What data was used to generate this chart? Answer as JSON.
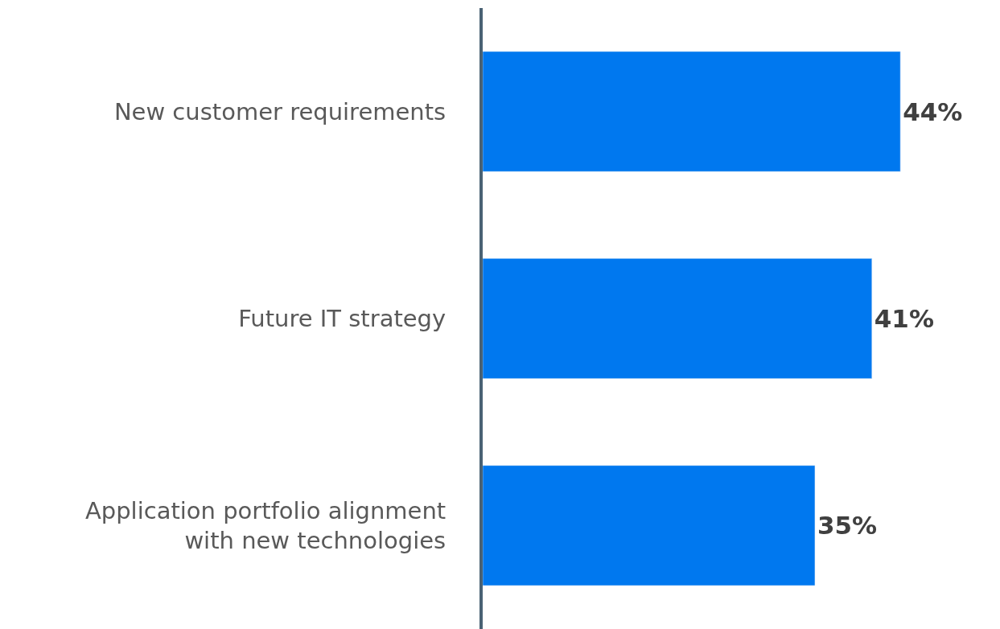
{
  "chart_data": {
    "type": "bar",
    "orientation": "horizontal",
    "categories": [
      "New customer requirements",
      "Future IT strategy",
      "Application portfolio alignment\nwith new technologies"
    ],
    "values": [
      44,
      41,
      35
    ],
    "value_labels": [
      "44%",
      "41%",
      "35%"
    ],
    "color": "#0078ef"
  }
}
